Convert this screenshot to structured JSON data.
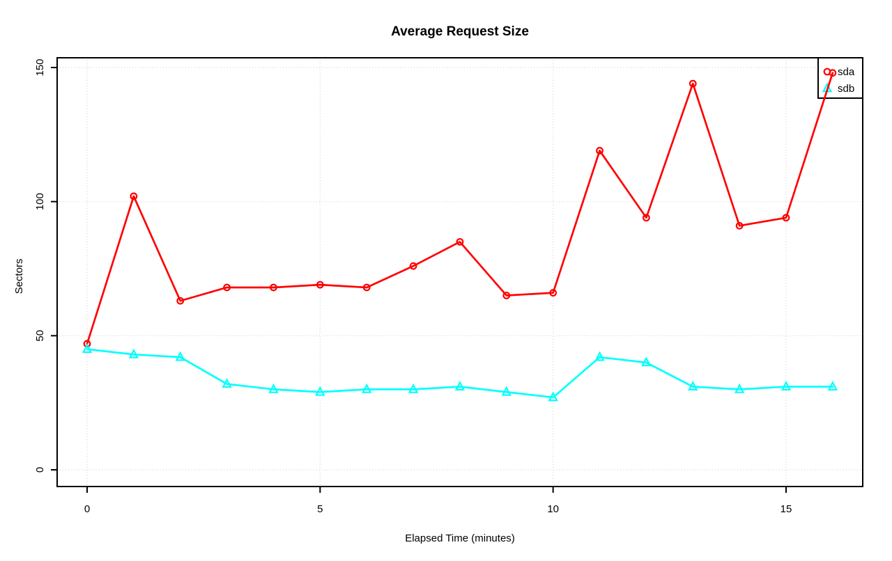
{
  "page": {
    "background_color": "#ffffff",
    "text_color": "#000000"
  },
  "chart_data": {
    "type": "line",
    "title": "Average Request Size",
    "xlabel": "Elapsed Time (minutes)",
    "ylabel": "Sectors",
    "x": [
      0,
      1,
      2,
      3,
      4,
      5,
      6,
      7,
      8,
      9,
      10,
      11,
      12,
      13,
      14,
      15,
      16
    ],
    "series": [
      {
        "name": "sda",
        "color": "#ff0000",
        "marker": "circle",
        "values": [
          47,
          102,
          63,
          68,
          68,
          69,
          68,
          76,
          85,
          65,
          66,
          119,
          94,
          144,
          91,
          94,
          148
        ]
      },
      {
        "name": "sdb",
        "color": "#00ffff",
        "marker": "triangle",
        "values": [
          45,
          43,
          42,
          32,
          30,
          29,
          30,
          30,
          31,
          29,
          27,
          42,
          40,
          31,
          30,
          31,
          31
        ]
      }
    ],
    "xticks": [
      0,
      5,
      10,
      15
    ],
    "yticks": [
      0,
      50,
      100,
      150
    ],
    "xlim": [
      0,
      16
    ],
    "ylim": [
      0,
      150
    ],
    "grid": "dotted",
    "grid_color": "#d3d3d3",
    "axis_color": "#000000",
    "plot_background": "#ffffff",
    "legend": {
      "position": "top-right",
      "entries": [
        "sda",
        "sdb"
      ]
    }
  }
}
